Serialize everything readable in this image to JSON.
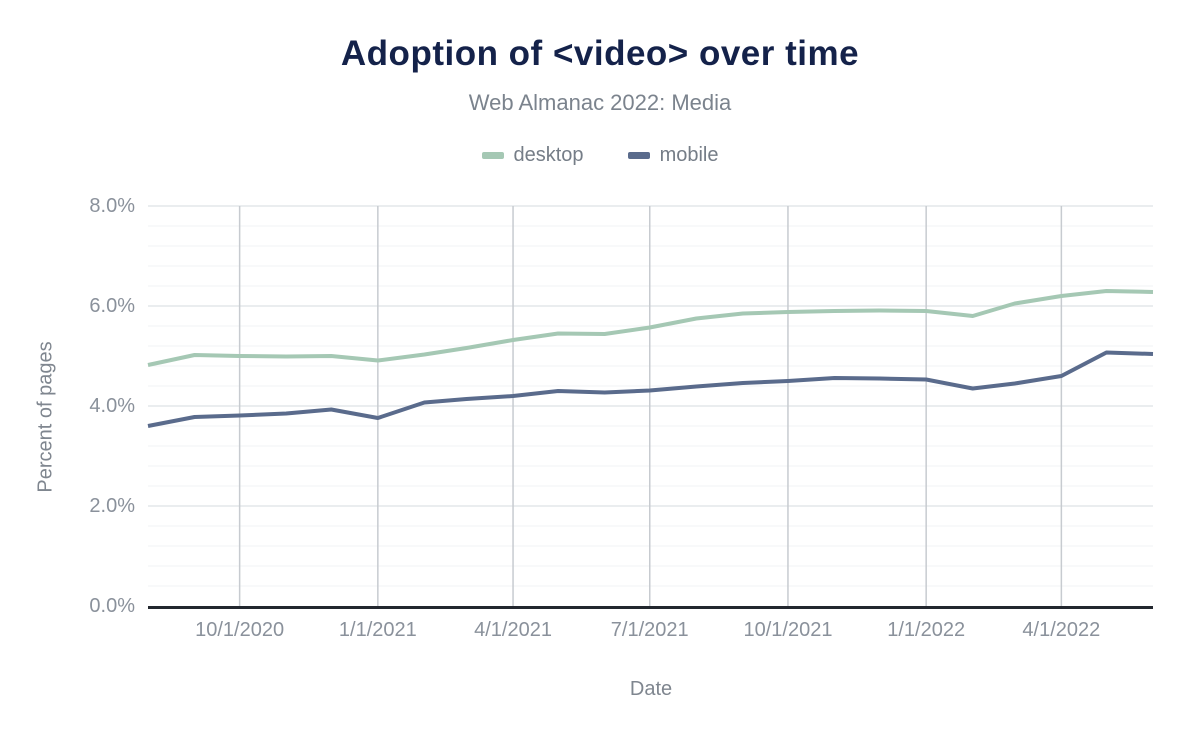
{
  "page": {
    "title": "Adoption of <video> over time",
    "subtitle": "Web Almanac 2022: Media"
  },
  "legend": [
    {
      "label": "desktop",
      "color": "#a5c8b4"
    },
    {
      "label": "mobile",
      "color": "#5a6b8c"
    }
  ],
  "axes": {
    "y_title": "Percent of pages",
    "x_title": "Date"
  },
  "colors": {
    "title": "#14224a",
    "subtitle": "#7b838d",
    "tick_label": "#8a919b",
    "axis_title": "#7f868f",
    "axis_line": "#22272e",
    "grid_vertical": "#c7cbd0",
    "grid_major": "#e4e7ea",
    "grid_minor": "#f2f3f5",
    "background": "#ffffff"
  },
  "chart_data": {
    "type": "line",
    "title": "Adoption of <video> over time",
    "subtitle": "Web Almanac 2022: Media",
    "xlabel": "Date",
    "ylabel": "Percent of pages",
    "unit": "percent",
    "grid": "both",
    "legend_position": "top",
    "x": [
      "8/1/2020",
      "9/1/2020",
      "10/1/2020",
      "11/1/2020",
      "12/1/2020",
      "1/1/2021",
      "2/1/2021",
      "3/1/2021",
      "4/1/2021",
      "5/1/2021",
      "6/1/2021",
      "7/1/2021",
      "8/1/2021",
      "9/1/2021",
      "10/1/2021",
      "11/1/2021",
      "12/1/2021",
      "1/1/2022",
      "2/1/2022",
      "3/1/2022",
      "4/1/2022",
      "5/1/2022",
      "6/1/2022"
    ],
    "series": [
      {
        "name": "desktop",
        "color": "#a5c8b4",
        "values": [
          4.82,
          5.02,
          5.0,
          4.99,
          5.0,
          4.91,
          5.03,
          5.16,
          5.32,
          5.45,
          5.44,
          5.57,
          5.75,
          5.85,
          5.88,
          5.9,
          5.91,
          5.9,
          5.8,
          6.05,
          6.2,
          6.3,
          6.28
        ]
      },
      {
        "name": "mobile",
        "color": "#5a6b8c",
        "values": [
          3.6,
          3.78,
          3.81,
          3.85,
          3.93,
          3.76,
          4.07,
          4.14,
          4.2,
          4.3,
          4.27,
          4.31,
          4.39,
          4.46,
          4.5,
          4.56,
          4.55,
          4.53,
          4.35,
          4.45,
          4.6,
          5.07,
          5.04
        ]
      }
    ],
    "ylim": [
      0,
      8
    ],
    "y_tick_values": [
      0,
      2,
      4,
      6,
      8
    ],
    "y_tick_labels": [
      "0.0%",
      "2.0%",
      "4.0%",
      "6.0%",
      "8.0%"
    ],
    "y_minor_step": 0.4,
    "x_range": [
      "8/1/2020",
      "6/1/2022"
    ],
    "x_tick_labels": [
      "10/1/2020",
      "1/1/2021",
      "4/1/2021",
      "7/1/2021",
      "10/1/2021",
      "1/1/2022",
      "4/1/2022"
    ]
  }
}
